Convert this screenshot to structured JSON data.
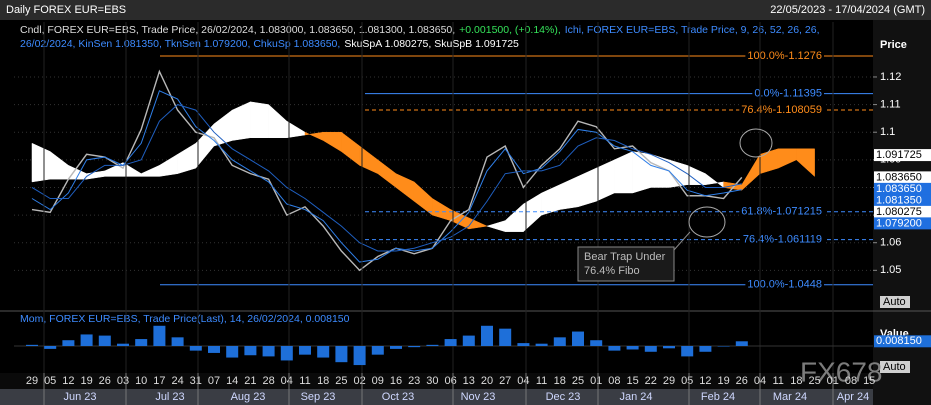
{
  "header": {
    "title": "Daily FOREX EUR=EBS",
    "range": "22/05/2023 - 17/04/2024 (GMT)"
  },
  "watermark": "FX678",
  "chart_data": [
    {
      "type": "ichimoku",
      "legend": {
        "main": "Cndl, FOREX EUR=EBS, Trade Price, 26/02/2024, 1.083000, 1.083650, 1.081300, 1.083650,",
        "change": "+0.001500, (+0.14%),",
        "ichi1": "Ichi, FOREX EUR=EBS, Trade Price,  9, 26, 52, 26, 26,",
        "ichi2": "26/02/2024, KinSen 1.081350, TknSen 1.079200, ChkuSp 1.083650,",
        "spans": "SkuSpA 1.080275, SkuSpB 1.091725"
      },
      "axis_title": "Price",
      "auto": "Auto",
      "categories": [
        "29",
        "05",
        "12",
        "19",
        "26",
        "03",
        "10",
        "17",
        "24",
        "31",
        "07",
        "14",
        "21",
        "28",
        "04",
        "11",
        "18",
        "25",
        "02",
        "09",
        "16",
        "23",
        "30",
        "06",
        "13",
        "20",
        "27",
        "04",
        "11",
        "18",
        "25",
        "01",
        "08",
        "15",
        "22",
        "29",
        "05",
        "12",
        "19",
        "26",
        "04",
        "11",
        "18",
        "25",
        "01",
        "08",
        "15"
      ],
      "months": [
        "Jun 23",
        "Jul 23",
        "Aug 23",
        "Sep 23",
        "Oct 23",
        "Nov 23",
        "Dec 23",
        "Jan 24",
        "Feb 24",
        "Mar 24",
        "Apr 24"
      ],
      "series": [
        {
          "name": "Close",
          "color": "#b8b8b8",
          "values": [
            1.072,
            1.071,
            1.083,
            1.092,
            1.091,
            1.087,
            1.101,
            1.122,
            1.108,
            1.1,
            1.098,
            1.088,
            1.085,
            1.083,
            1.07,
            1.073,
            1.066,
            1.057,
            1.05,
            1.055,
            1.058,
            1.056,
            1.058,
            1.068,
            1.072,
            1.091,
            1.095,
            1.08,
            1.088,
            1.094,
            1.104,
            1.102,
            1.094,
            1.095,
            1.089,
            1.086,
            1.077,
            1.077,
            1.076,
            1.08365,
            null,
            null,
            null,
            null,
            null,
            null,
            null
          ]
        },
        {
          "name": "TknSen",
          "color": "#2f7fe8",
          "values": [
            1.076,
            1.072,
            1.078,
            1.09,
            1.091,
            1.088,
            1.096,
            1.115,
            1.112,
            1.102,
            1.097,
            1.09,
            1.086,
            1.082,
            1.074,
            1.072,
            1.068,
            1.06,
            1.053,
            1.054,
            1.058,
            1.057,
            1.058,
            1.064,
            1.071,
            1.086,
            1.094,
            1.085,
            1.087,
            1.093,
            1.101,
            1.1,
            1.095,
            1.093,
            1.088,
            1.086,
            1.079,
            1.077,
            1.078,
            1.0792,
            null,
            null,
            null,
            null,
            null,
            null,
            null
          ]
        },
        {
          "name": "KinSen",
          "color": "#1f5fc0",
          "values": [
            1.08,
            1.076,
            1.076,
            1.084,
            1.088,
            1.088,
            1.09,
            1.104,
            1.11,
            1.108,
            1.1,
            1.094,
            1.09,
            1.086,
            1.08,
            1.076,
            1.071,
            1.066,
            1.06,
            1.057,
            1.057,
            1.058,
            1.06,
            1.062,
            1.066,
            1.075,
            1.085,
            1.086,
            1.086,
            1.088,
            1.095,
            1.098,
            1.097,
            1.094,
            1.092,
            1.089,
            1.085,
            1.08,
            1.08,
            1.08135,
            null,
            null,
            null,
            null,
            null,
            null,
            null
          ]
        },
        {
          "name": "SkuSpA",
          "color": "#ffffff",
          "values": [
            1.096,
            1.093,
            1.088,
            1.085,
            1.086,
            1.089,
            1.085,
            1.088,
            1.092,
            1.096,
            1.103,
            1.108,
            1.111,
            1.11,
            1.104,
            1.1,
            1.097,
            1.093,
            1.088,
            1.085,
            1.08,
            1.075,
            1.07,
            1.068,
            1.065,
            1.066,
            1.068,
            1.074,
            1.078,
            1.081,
            1.084,
            1.087,
            1.09,
            1.093,
            1.092,
            1.09,
            1.088,
            1.085,
            1.08,
            1.079,
            1.085,
            1.087,
            1.09,
            1.084,
            null,
            null,
            null
          ]
        },
        {
          "name": "SkuSpB",
          "color": "#ff8c1a",
          "values": [
            1.082,
            1.083,
            1.083,
            1.083,
            1.084,
            1.084,
            1.084,
            1.084,
            1.085,
            1.087,
            1.095,
            1.097,
            1.098,
            1.098,
            1.098,
            1.099,
            1.1,
            1.1,
            1.095,
            1.09,
            1.085,
            1.082,
            1.076,
            1.072,
            1.069,
            1.066,
            1.064,
            1.064,
            1.07,
            1.072,
            1.073,
            1.075,
            1.078,
            1.078,
            1.08,
            1.08,
            1.081,
            1.081,
            1.082,
            1.081,
            1.092,
            1.094,
            1.094,
            1.094,
            null,
            null,
            null
          ]
        }
      ],
      "ylim": [
        1.036,
        1.1399
      ],
      "yticks": [
        1.05,
        1.06,
        1.07,
        1.08,
        1.09,
        1.1,
        1.11,
        1.12
      ],
      "grid": true,
      "price_labels": [
        {
          "value": 1.091725,
          "label": "1.091725",
          "color": "#ffffff"
        },
        {
          "value": 1.08365,
          "label": "1.083650",
          "color": "#ffffff"
        },
        {
          "value": 1.08365,
          "label": "1.083650",
          "color": "#1f6fe0"
        },
        {
          "value": 1.08135,
          "label": "1.081350",
          "color": "#1f6fe0"
        },
        {
          "value": 1.080275,
          "label": "1.080275",
          "color": "#ffffff"
        },
        {
          "value": 1.0792,
          "label": "1.079200",
          "color": "#1f6fe0"
        }
      ],
      "fib_levels": [
        {
          "value": 1.1276,
          "label": "100.0%-1.1276",
          "color": "#ff8c1a"
        },
        {
          "value": 1.11395,
          "label": "0.0%-1.11395",
          "color": "#3d8bff"
        },
        {
          "value": 1.108059,
          "label": "76.4%-1.108059",
          "color": "#ff8c1a"
        },
        {
          "value": 1.071215,
          "label": "61.8%-1.071215",
          "color": "#3d8bff"
        },
        {
          "value": 1.061119,
          "label": "76.4%-1.061119",
          "color": "#3d8bff"
        },
        {
          "value": 1.0448,
          "label": "100.0%-1.0448",
          "color": "#3d8bff"
        }
      ],
      "annotation": [
        "Bear Trap Under",
        "76.4% Fibo"
      ]
    },
    {
      "type": "bar",
      "legend": "Mom, FOREX EUR=EBS, Trade Price(Last),  14, 26/02/2024, 0.008150",
      "axis_title": "Value",
      "auto": "Auto",
      "color": "#1e6fd9",
      "values": [
        0.002,
        -0.005,
        0.01,
        0.02,
        0.018,
        0.004,
        0.012,
        0.035,
        0.015,
        -0.008,
        -0.012,
        -0.02,
        -0.016,
        -0.018,
        -0.025,
        -0.015,
        -0.02,
        -0.028,
        -0.033,
        -0.015,
        -0.005,
        -0.002,
        0.002,
        0.012,
        0.018,
        0.035,
        0.03,
        0.005,
        0.004,
        0.015,
        0.025,
        0.01,
        -0.008,
        -0.006,
        -0.01,
        -0.004,
        -0.018,
        -0.01,
        0.0,
        0.00815,
        null,
        null,
        null,
        null,
        null,
        null,
        null
      ],
      "ylim": [
        -0.045,
        0.045
      ],
      "value_label": {
        "value": 0.00815,
        "label": "0.008150"
      }
    }
  ]
}
